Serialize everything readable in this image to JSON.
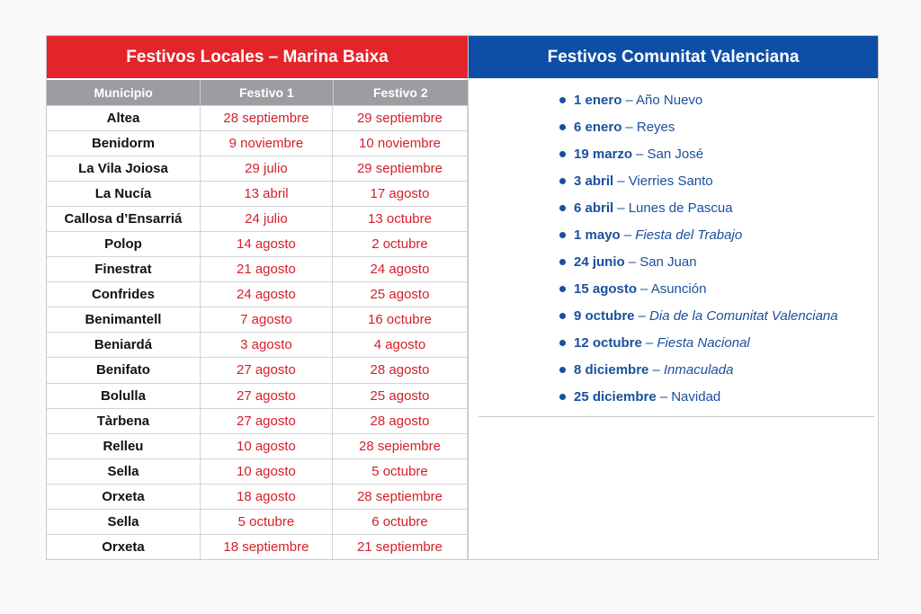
{
  "left": {
    "title": "Festivos Locales – Marina Baixa",
    "columns": [
      "Municipio",
      "Festivo 1",
      "Festivo 2"
    ],
    "rows": [
      [
        "Altea",
        "28 septiembre",
        "29 septiembre"
      ],
      [
        "Benidorm",
        "9 noviembre",
        "10 noviembre"
      ],
      [
        "La Vila Joiosa",
        "29 julio",
        "29 septiembre"
      ],
      [
        "La Nucía",
        "13 abril",
        "17 agosto"
      ],
      [
        "Callosa d’Ensarriá",
        "24 julio",
        "13 octubre"
      ],
      [
        "Polop",
        "14 agosto",
        "2 octubre"
      ],
      [
        "Finestrat",
        "21 agosto",
        "24 agosto"
      ],
      [
        "Confrides",
        "24 agosto",
        "25 agosto"
      ],
      [
        "Benimantell",
        "7 agosto",
        "16 octubre"
      ],
      [
        "Beniardá",
        "3 agosto",
        "4 agosto"
      ],
      [
        "Benifato",
        "27 agosto",
        "28 agosto"
      ],
      [
        "Bolulla",
        "27 agosto",
        "25 agosto"
      ],
      [
        "Tàrbena",
        "27 agosto",
        "28 agosto"
      ],
      [
        "Relleu",
        "10 agosto",
        "28 sepiembre"
      ],
      [
        "Sella",
        "10 agosto",
        "5 octubre"
      ],
      [
        "Orxeta",
        "18 agosto",
        "28 septiembre"
      ],
      [
        "Sella",
        "5 octubre",
        "6 octubre"
      ],
      [
        "Orxeta",
        "18 septiembre",
        "21 septiembre"
      ]
    ]
  },
  "right": {
    "title": "Festivos Comunitat Valenciana",
    "items": [
      {
        "date": "1 enero",
        "name": "– Año Nuevo",
        "italic": false
      },
      {
        "date": "6 enero",
        "name": "– Reyes",
        "italic": false
      },
      {
        "date": "19 marzo",
        "name": "– San José",
        "italic": false
      },
      {
        "date": "3 abril",
        "name": "– Vierries Santo",
        "italic": false
      },
      {
        "date": "6 abril",
        "name": "– Lunes de Pascua",
        "italic": false
      },
      {
        "date": "1 mayo",
        "name": "– Fiesta del Trabajo",
        "italic": true
      },
      {
        "date": "24 junio",
        "name": "– San Juan",
        "italic": false
      },
      {
        "date": "15 agosto",
        "name": "– Asunción",
        "italic": false
      },
      {
        "date": "9 octubre",
        "name": "– Dia de la Comunitat Valenciana",
        "italic": true
      },
      {
        "date": "12 octubre",
        "name": "– Fiesta Nacional",
        "italic": true
      },
      {
        "date": "8 diciembre",
        "name": "– Inmaculada",
        "italic": true
      },
      {
        "date": "25 diciembre",
        "name": "– Navidad",
        "italic": false
      }
    ]
  }
}
